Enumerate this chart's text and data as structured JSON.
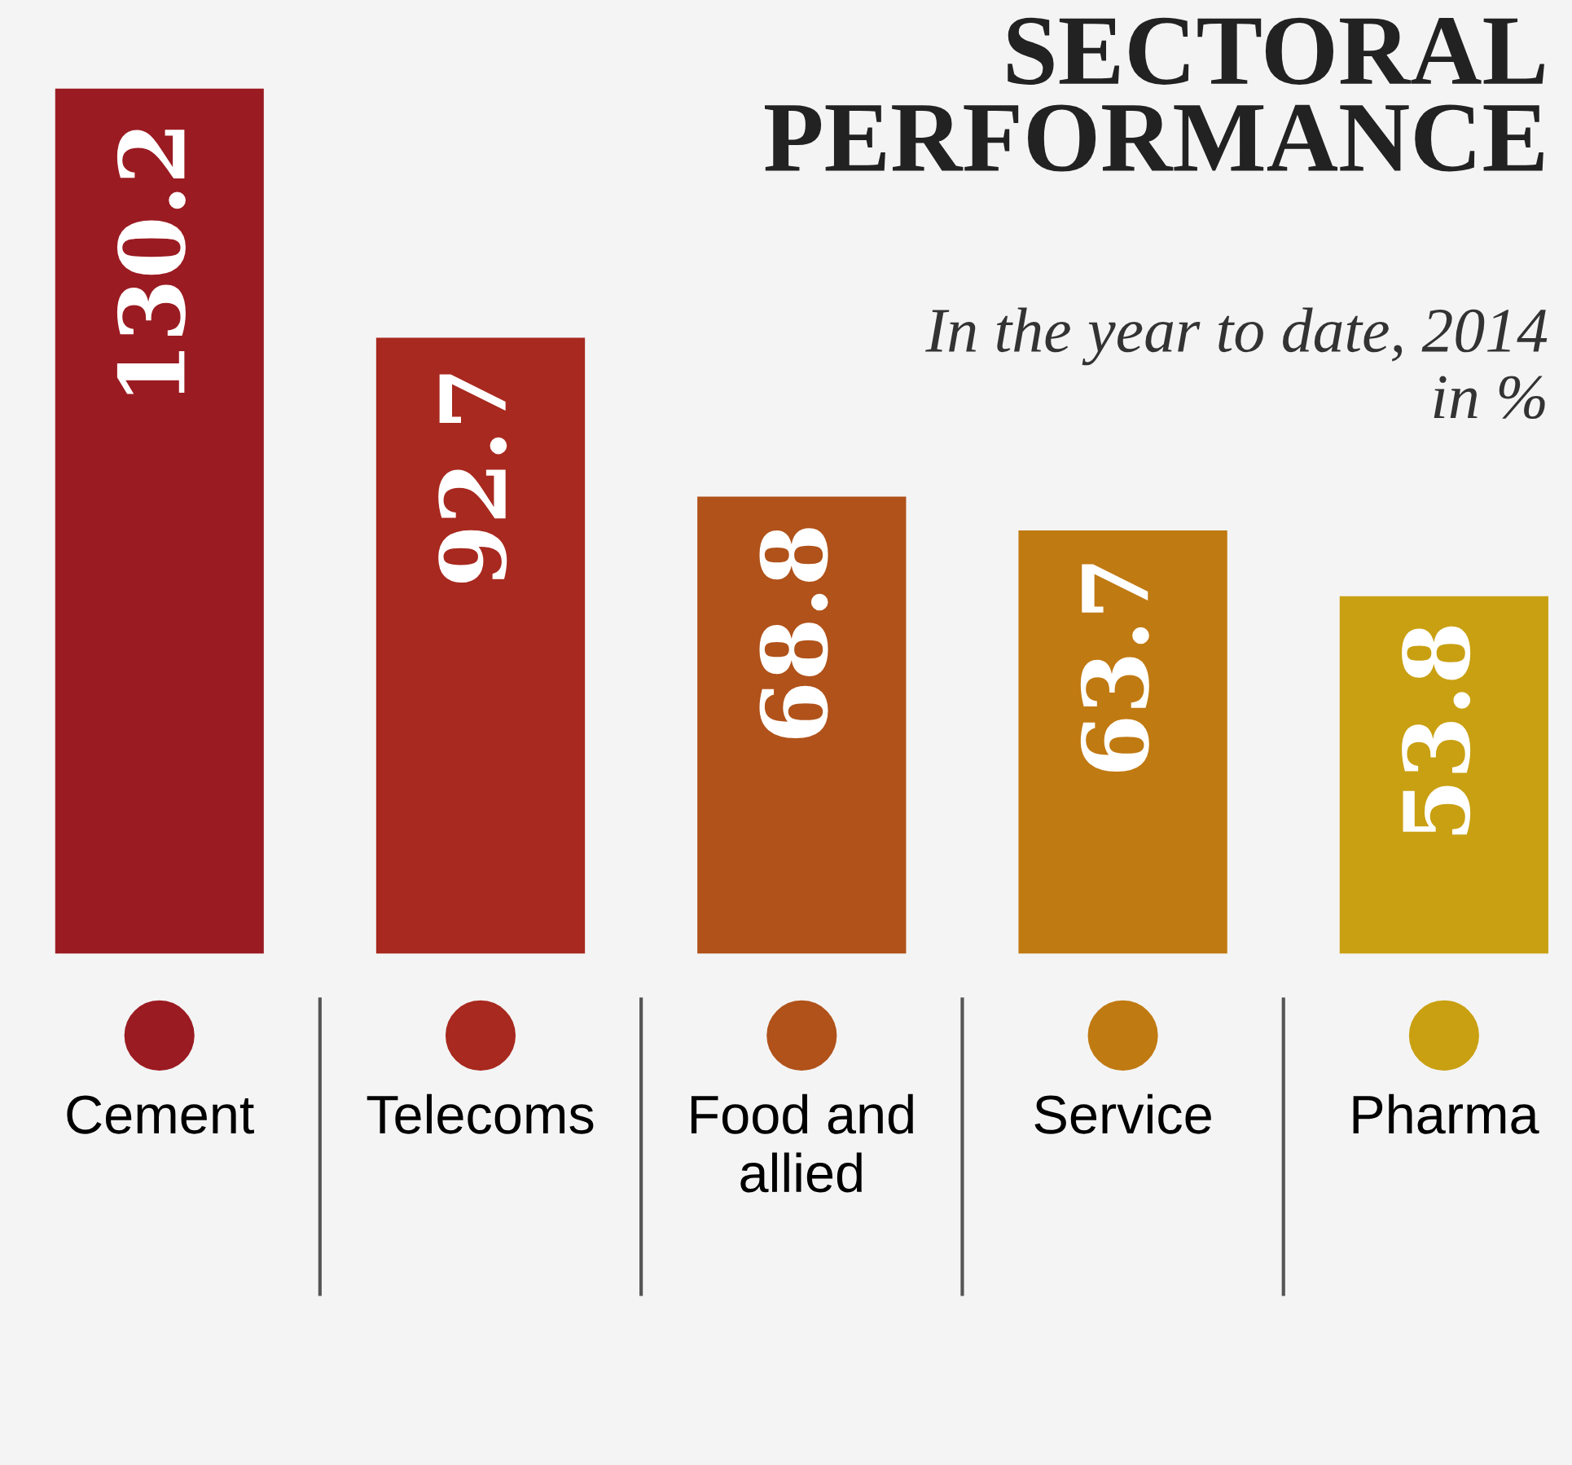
{
  "chart_data": {
    "type": "bar",
    "title": "SECTORAL\nPERFORMANCE",
    "subtitle": "In the year to date, 2014\nin %",
    "categories": [
      "Cement",
      "Telecoms",
      "Food and\nallied",
      "Service",
      "Pharma"
    ],
    "values": [
      130.2,
      92.7,
      68.8,
      63.7,
      53.8
    ],
    "colors": [
      "#9b1b22",
      "#a8291f",
      "#b0521a",
      "#c07a12",
      "#c9a012"
    ],
    "data_labels": true,
    "grid": false,
    "legend": false
  }
}
